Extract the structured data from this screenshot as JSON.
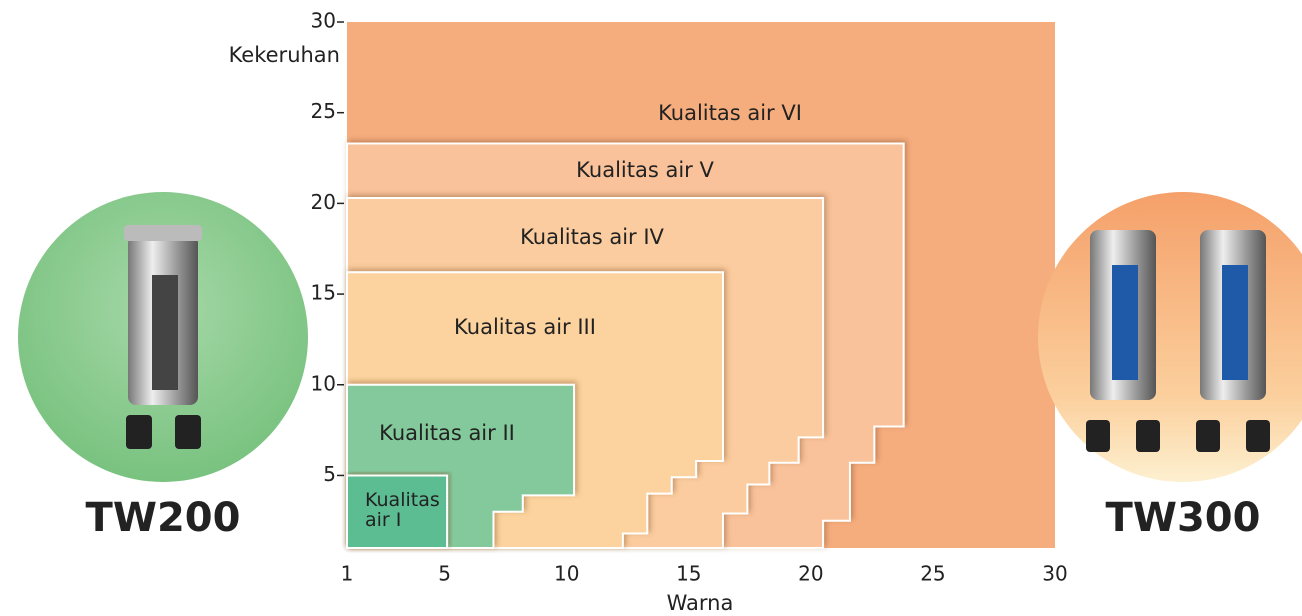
{
  "chart_data": {
    "type": "region",
    "xlabel": "Warna",
    "ylabel": "Kekeruhan",
    "xlim": [
      1,
      30
    ],
    "ylim": [
      1,
      30
    ],
    "xticks": [
      1,
      5,
      10,
      15,
      20,
      25,
      30
    ],
    "yticks": [
      5,
      10,
      15,
      20,
      25,
      30
    ],
    "regions": [
      {
        "name": "Kualitas air VI",
        "color": "#f6ad7e",
        "x": [
          1,
          30,
          30,
          1
        ],
        "y": [
          1,
          1,
          30,
          30
        ]
      },
      {
        "name": "Kualitas air V",
        "color": "#f9c29a",
        "x": [
          1,
          1,
          23.8,
          23.8,
          22.6,
          22.6,
          21.6,
          21.6,
          20.5,
          20.5
        ],
        "y": [
          1,
          23.3,
          23.3,
          7.7,
          7.7,
          5.7,
          5.7,
          2.5,
          2.5,
          1
        ]
      },
      {
        "name": "Kualitas air IV",
        "color": "#fbcc9f",
        "x": [
          1,
          1,
          20.5,
          20.5,
          19.5,
          19.5,
          18.3,
          18.3,
          17.4,
          17.4,
          16.4,
          16.4
        ],
        "y": [
          1,
          20.3,
          20.3,
          7.1,
          7.1,
          5.7,
          5.7,
          4.5,
          4.5,
          2.9,
          2.9,
          1
        ]
      },
      {
        "name": "Kualitas air III",
        "color": "#fcd39e",
        "x": [
          1,
          1,
          16.4,
          16.4,
          15.3,
          15.3,
          14.3,
          14.3,
          13.3,
          13.3,
          12.3,
          12.3
        ],
        "y": [
          1,
          16.2,
          16.2,
          5.8,
          5.8,
          4.9,
          4.9,
          4,
          4,
          1.8,
          1.8,
          1
        ]
      },
      {
        "name": "Kualitas air II",
        "color": "#84c99b",
        "x": [
          1,
          1,
          10.3,
          10.3,
          8.2,
          8.2,
          7,
          7
        ],
        "y": [
          1,
          10,
          10,
          3.9,
          3.9,
          3,
          3,
          1
        ]
      },
      {
        "name": "Kualitas air I",
        "color": "#5dbd92",
        "x": [
          1,
          1,
          5.1,
          5.1
        ],
        "y": [
          1,
          5,
          5,
          1
        ]
      }
    ],
    "products": [
      "TW200",
      "TW300"
    ]
  }
}
